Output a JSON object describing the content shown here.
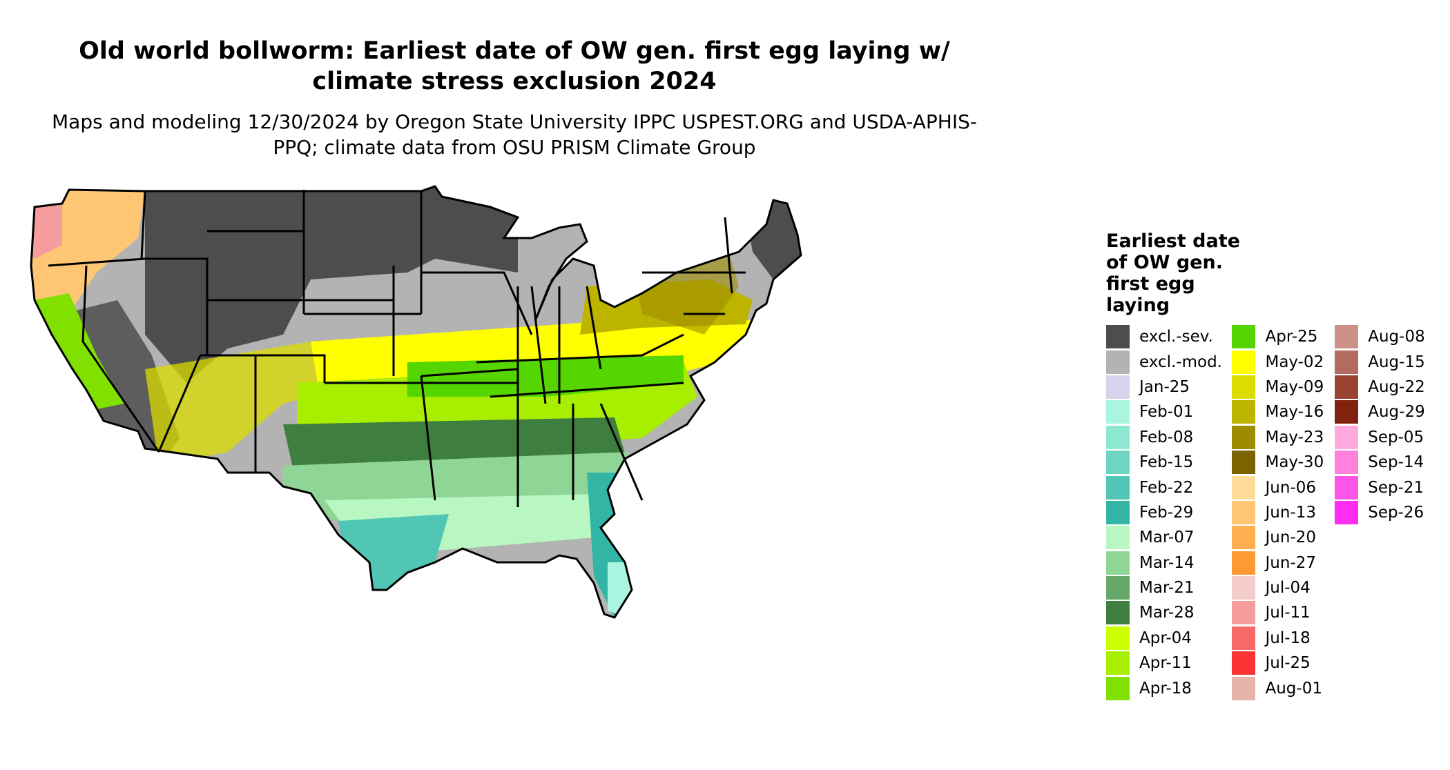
{
  "title": "Old world bollworm: Earliest date of OW gen. first egg laying w/ climate stress exclusion 2024",
  "subtitle": "Maps and modeling 12/30/2024 by Oregon State University IPPC USPEST.ORG and USDA-APHIS-PPQ; climate data from OSU PRISM Climate Group",
  "legend": {
    "title": "Earliest date of OW gen. first egg laying",
    "columns": [
      [
        {
          "label": "excl.-sev.",
          "color": "#4d4d4d"
        },
        {
          "label": "excl.-mod.",
          "color": "#b3b3b3"
        },
        {
          "label": "Jan-25",
          "color": "#d8d3ec"
        },
        {
          "label": "Feb-01",
          "color": "#aaf5df"
        },
        {
          "label": "Feb-08",
          "color": "#8de8d2"
        },
        {
          "label": "Feb-15",
          "color": "#6fd5c3"
        },
        {
          "label": "Feb-22",
          "color": "#52c6b5"
        },
        {
          "label": "Feb-29",
          "color": "#33b5a5"
        },
        {
          "label": "Mar-07",
          "color": "#b8f7c2"
        },
        {
          "label": "Mar-14",
          "color": "#8fd696"
        },
        {
          "label": "Mar-21",
          "color": "#66a86a"
        },
        {
          "label": "Mar-28",
          "color": "#3f7e41"
        },
        {
          "label": "Apr-04",
          "color": "#ccff00"
        },
        {
          "label": "Apr-11",
          "color": "#a8ee00"
        },
        {
          "label": "Apr-18",
          "color": "#80e000"
        }
      ],
      [
        {
          "label": "Apr-25",
          "color": "#55d600"
        },
        {
          "label": "May-02",
          "color": "#ffff00"
        },
        {
          "label": "May-09",
          "color": "#dcdc00"
        },
        {
          "label": "May-16",
          "color": "#bdb400"
        },
        {
          "label": "May-23",
          "color": "#9e8c00"
        },
        {
          "label": "May-30",
          "color": "#7b6400"
        },
        {
          "label": "Jun-06",
          "color": "#ffdd99"
        },
        {
          "label": "Jun-13",
          "color": "#ffc773"
        },
        {
          "label": "Jun-20",
          "color": "#ffaf50"
        },
        {
          "label": "Jun-27",
          "color": "#ff9933"
        },
        {
          "label": "Jul-04",
          "color": "#f5cccc"
        },
        {
          "label": "Jul-11",
          "color": "#f59c9c"
        },
        {
          "label": "Jul-18",
          "color": "#f76868"
        },
        {
          "label": "Jul-25",
          "color": "#fa3333"
        },
        {
          "label": "Aug-01",
          "color": "#e6b3a8"
        }
      ],
      [
        {
          "label": "Aug-08",
          "color": "#cc9088"
        },
        {
          "label": "Aug-15",
          "color": "#b36b60"
        },
        {
          "label": "Aug-22",
          "color": "#994433"
        },
        {
          "label": "Aug-29",
          "color": "#80220d"
        },
        {
          "label": "Sep-05",
          "color": "#ffaadd"
        },
        {
          "label": "Sep-14",
          "color": "#ff80dd"
        },
        {
          "label": "Sep-21",
          "color": "#ff55e6"
        },
        {
          "label": "Sep-26",
          "color": "#ff2df2"
        }
      ]
    ]
  }
}
